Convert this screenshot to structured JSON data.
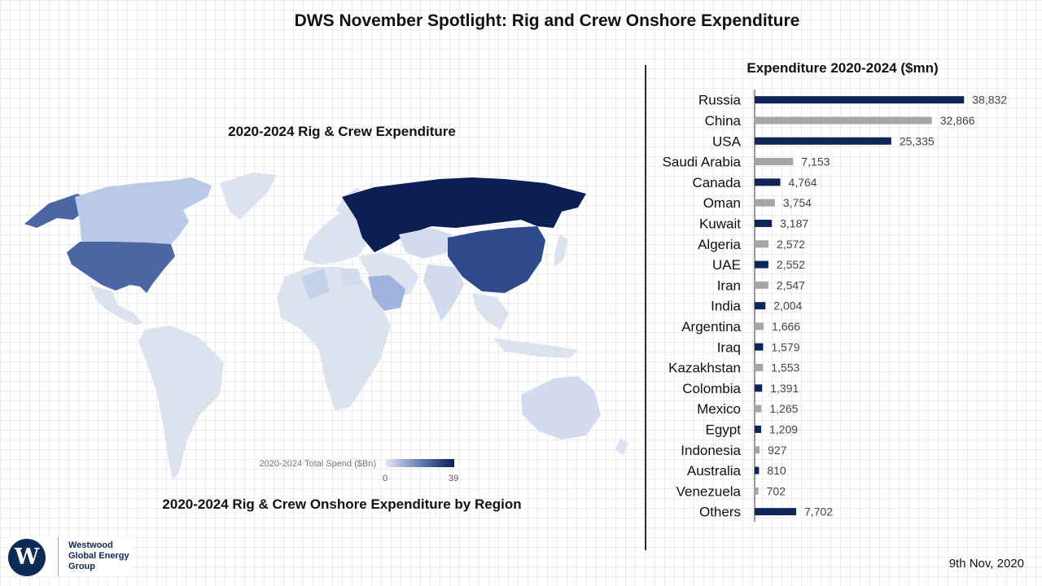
{
  "title": "DWS November Spotlight: Rig and Crew Onshore Expenditure",
  "map": {
    "title": "2020-2024 Rig & Crew Expenditure",
    "caption": "2020-2024 Rig & Crew Onshore Expenditure by Region",
    "legend_label": "2020-2024 Total Spend ($Bn)",
    "legend_min": "0",
    "legend_max": "39",
    "colors": {
      "ocean": "none",
      "land_default": "#dde3ee",
      "low": "#b9c9e8",
      "mid": "#4b66a3",
      "high": "#0b1f55"
    }
  },
  "chart_data": {
    "type": "bar",
    "title": "Expenditure 2020-2024 ($mn)",
    "orientation": "horizontal",
    "categories": [
      "Russia",
      "China",
      "USA",
      "Saudi Arabia",
      "Canada",
      "Oman",
      "Kuwait",
      "Algeria",
      "UAE",
      "Iran",
      "India",
      "Argentina",
      "Iraq",
      "Kazakhstan",
      "Colombia",
      "Mexico",
      "Egypt",
      "Indonesia",
      "Australia",
      "Venezuela",
      "Others"
    ],
    "values": [
      38832,
      32866,
      25335,
      7153,
      4764,
      3754,
      3187,
      2572,
      2552,
      2547,
      2004,
      1666,
      1579,
      1553,
      1391,
      1265,
      1209,
      927,
      810,
      702,
      7702
    ],
    "value_labels": [
      "38,832",
      "32,866",
      "25,335",
      "7,153",
      "4,764",
      "3,754",
      "3,187",
      "2,572",
      "2,552",
      "2,547",
      "2,004",
      "1,666",
      "1,579",
      "1,553",
      "1,391",
      "1,265",
      "1,209",
      "927",
      "810",
      "702",
      "7,702"
    ],
    "bar_colors": [
      "#0e2559",
      "#a6a6a6",
      "#0e2559",
      "#a6a6a6",
      "#0e2559",
      "#a6a6a6",
      "#0e2559",
      "#a6a6a6",
      "#0e2559",
      "#a6a6a6",
      "#0e2559",
      "#a6a6a6",
      "#0e2559",
      "#a6a6a6",
      "#0e2559",
      "#a6a6a6",
      "#0e2559",
      "#a6a6a6",
      "#0e2559",
      "#a6a6a6",
      "#0e2559"
    ],
    "xlim": [
      0,
      40000
    ]
  },
  "logo": {
    "mark": "W",
    "line1": "Westwood",
    "line2": "Global Energy",
    "line3": "Group"
  },
  "date": "9th Nov, 2020"
}
